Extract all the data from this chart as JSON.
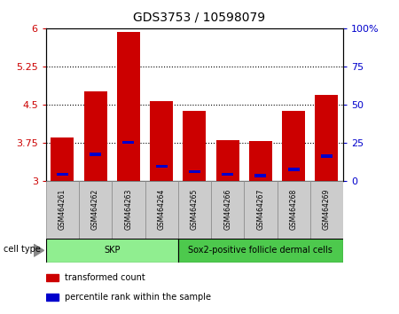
{
  "title": "GDS3753 / 10598079",
  "samples": [
    "GSM464261",
    "GSM464262",
    "GSM464263",
    "GSM464264",
    "GSM464265",
    "GSM464266",
    "GSM464267",
    "GSM464268",
    "GSM464269"
  ],
  "red_values": [
    3.85,
    4.75,
    5.93,
    4.57,
    4.38,
    3.8,
    3.78,
    4.38,
    4.68
  ],
  "blue_values": [
    3.12,
    3.52,
    3.75,
    3.28,
    3.18,
    3.12,
    3.1,
    3.22,
    3.48
  ],
  "ylim_left": [
    3.0,
    6.0
  ],
  "ylim_right": [
    0,
    100
  ],
  "yticks_left": [
    3.0,
    3.75,
    4.5,
    5.25,
    6.0
  ],
  "yticks_right": [
    0,
    25,
    50,
    75,
    100
  ],
  "ytick_labels_left": [
    "3",
    "3.75",
    "4.5",
    "5.25",
    "6"
  ],
  "ytick_labels_right": [
    "0",
    "25",
    "50",
    "75",
    "100%"
  ],
  "cell_groups": [
    {
      "label": "SKP",
      "samples": [
        0,
        1,
        2,
        3
      ],
      "color": "#90EE90"
    },
    {
      "label": "Sox2-positive follicle dermal cells",
      "samples": [
        4,
        5,
        6,
        7,
        8
      ],
      "color": "#4DC94D"
    }
  ],
  "bar_color": "#CC0000",
  "blue_color": "#0000CC",
  "bar_bottom": 3.0,
  "bar_width": 0.7,
  "blue_bar_width": 0.35,
  "blue_bar_height": 0.06,
  "legend_items": [
    {
      "label": "transformed count",
      "color": "#CC0000"
    },
    {
      "label": "percentile rank within the sample",
      "color": "#0000CC"
    }
  ],
  "cell_type_label": "cell type",
  "tick_color_left": "#CC0000",
  "tick_color_right": "#0000CC",
  "label_box_color": "#CCCCCC",
  "label_box_edge": "#888888"
}
